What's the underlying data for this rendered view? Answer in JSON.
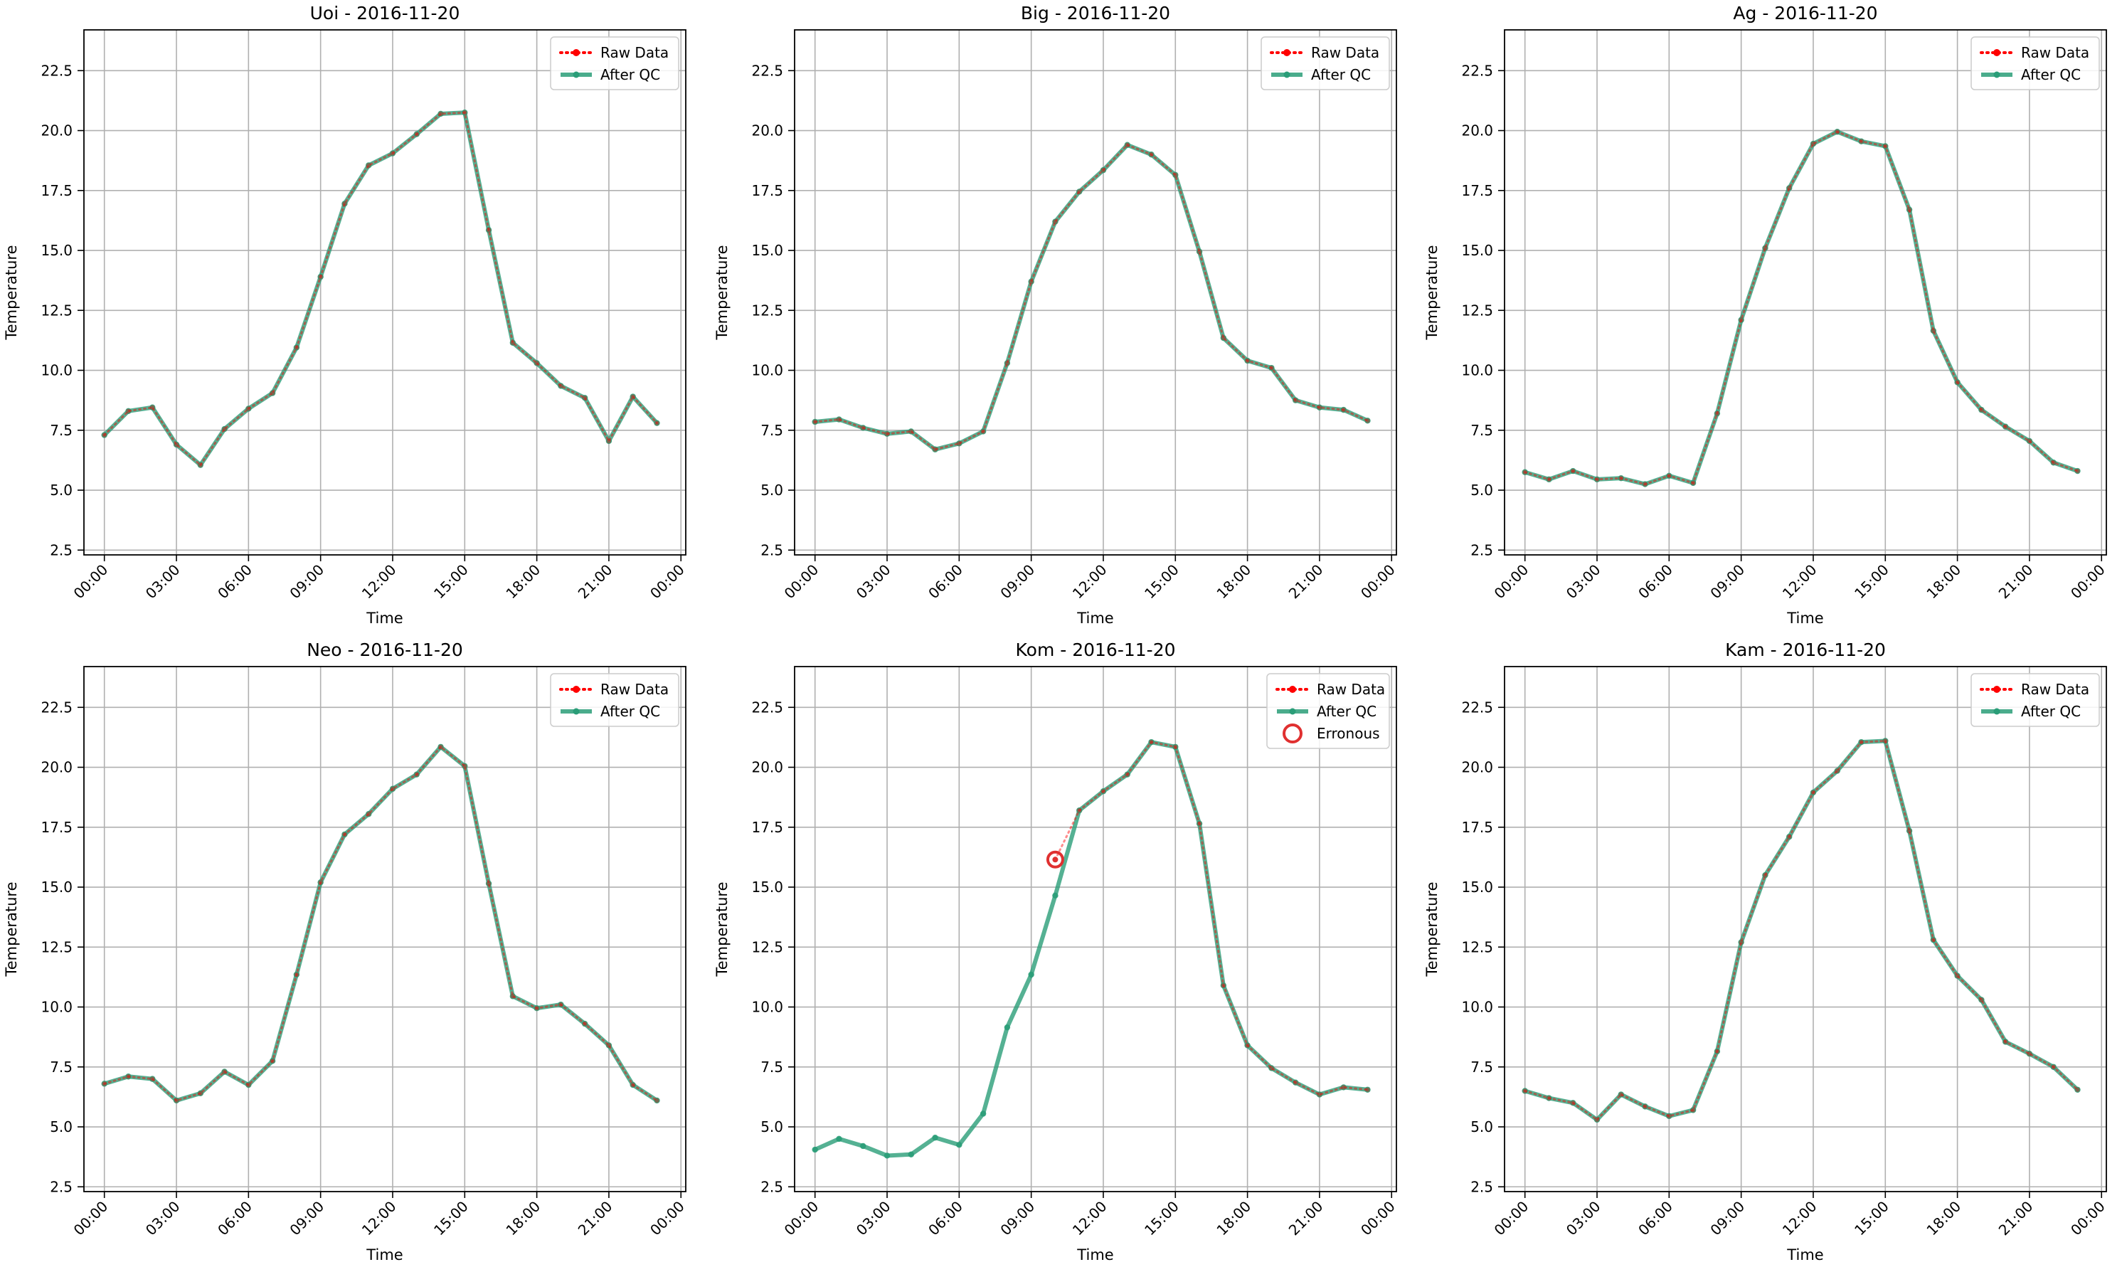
{
  "figure": {
    "raw_color": "#ff0000",
    "qc_color": "#2a9d78",
    "erroneous_color": "#e03030"
  },
  "chart_data": [
    {
      "type": "line",
      "title": "Uoi - 2016-11-20",
      "xlabel": "Time",
      "ylabel": "Temperature",
      "ylim": [
        2.3,
        24.2
      ],
      "xlim": [
        -0.85,
        24.2
      ],
      "x_tick_labels": [
        "00:00",
        "03:00",
        "06:00",
        "09:00",
        "12:00",
        "15:00",
        "18:00",
        "21:00",
        "00:00"
      ],
      "y_ticks": [
        "2.5",
        "5.0",
        "7.5",
        "10.0",
        "12.5",
        "15.0",
        "17.5",
        "20.0",
        "22.5"
      ],
      "grid": true,
      "legend_position": "top-right",
      "legend": [
        "Raw Data",
        "After QC"
      ],
      "x_hours": [
        0,
        1,
        2,
        3,
        4,
        5,
        6,
        7,
        8,
        9,
        10,
        11,
        12,
        13,
        14,
        15,
        16,
        17,
        18,
        19,
        20,
        21,
        22,
        23
      ],
      "series": [
        {
          "name": "Raw Data",
          "values": [
            7.3,
            8.3,
            8.45,
            6.9,
            6.05,
            7.55,
            8.4,
            9.05,
            10.95,
            13.9,
            16.95,
            18.55,
            19.05,
            19.85,
            20.7,
            20.75,
            15.85,
            11.15,
            10.3,
            9.35,
            8.85,
            7.05,
            8.9,
            7.8
          ]
        },
        {
          "name": "After QC",
          "values": [
            7.3,
            8.3,
            8.45,
            6.9,
            6.05,
            7.55,
            8.4,
            9.05,
            10.95,
            13.9,
            16.95,
            18.55,
            19.05,
            19.85,
            20.7,
            20.75,
            15.85,
            11.15,
            10.3,
            9.35,
            8.85,
            7.05,
            8.9,
            7.8
          ]
        }
      ]
    },
    {
      "type": "line",
      "title": "Big - 2016-11-20",
      "xlabel": "Time",
      "ylabel": "Temperature",
      "ylim": [
        2.3,
        24.2
      ],
      "xlim": [
        -0.85,
        24.2
      ],
      "x_tick_labels": [
        "00:00",
        "03:00",
        "06:00",
        "09:00",
        "12:00",
        "15:00",
        "18:00",
        "21:00",
        "00:00"
      ],
      "y_ticks": [
        "2.5",
        "5.0",
        "7.5",
        "10.0",
        "12.5",
        "15.0",
        "17.5",
        "20.0",
        "22.5"
      ],
      "grid": true,
      "legend_position": "top-right",
      "legend": [
        "Raw Data",
        "After QC"
      ],
      "x_hours": [
        0,
        1,
        2,
        3,
        4,
        5,
        6,
        7,
        8,
        9,
        10,
        11,
        12,
        13,
        14,
        15,
        16,
        17,
        18,
        19,
        20,
        21,
        22,
        23
      ],
      "series": [
        {
          "name": "Raw Data",
          "values": [
            7.85,
            7.95,
            7.6,
            7.35,
            7.45,
            6.7,
            6.95,
            7.45,
            10.3,
            13.7,
            16.2,
            17.45,
            18.35,
            19.4,
            19.0,
            18.15,
            14.95,
            11.35,
            10.4,
            10.1,
            8.75,
            8.45,
            8.35,
            7.9
          ]
        },
        {
          "name": "After QC",
          "values": [
            7.85,
            7.95,
            7.6,
            7.35,
            7.45,
            6.7,
            6.95,
            7.45,
            10.3,
            13.7,
            16.2,
            17.45,
            18.35,
            19.4,
            19.0,
            18.15,
            14.95,
            11.35,
            10.4,
            10.1,
            8.75,
            8.45,
            8.35,
            7.9
          ]
        }
      ]
    },
    {
      "type": "line",
      "title": "Ag - 2016-11-20",
      "xlabel": "Time",
      "ylabel": "Temperature",
      "ylim": [
        2.3,
        24.2
      ],
      "xlim": [
        -0.85,
        24.2
      ],
      "x_tick_labels": [
        "00:00",
        "03:00",
        "06:00",
        "09:00",
        "12:00",
        "15:00",
        "18:00",
        "21:00",
        "00:00"
      ],
      "y_ticks": [
        "2.5",
        "5.0",
        "7.5",
        "10.0",
        "12.5",
        "15.0",
        "17.5",
        "20.0",
        "22.5"
      ],
      "grid": true,
      "legend_position": "top-right",
      "legend": [
        "Raw Data",
        "After QC"
      ],
      "x_hours": [
        0,
        1,
        2,
        3,
        4,
        5,
        6,
        7,
        8,
        9,
        10,
        11,
        12,
        13,
        14,
        15,
        16,
        17,
        18,
        19,
        20,
        21,
        22,
        23
      ],
      "series": [
        {
          "name": "Raw Data",
          "values": [
            5.75,
            5.45,
            5.8,
            5.45,
            5.5,
            5.25,
            5.6,
            5.3,
            8.2,
            12.1,
            15.1,
            17.6,
            19.45,
            19.95,
            19.55,
            19.35,
            16.7,
            11.65,
            9.5,
            8.35,
            7.65,
            7.05,
            6.15,
            5.8
          ]
        },
        {
          "name": "After QC",
          "values": [
            5.75,
            5.45,
            5.8,
            5.45,
            5.5,
            5.25,
            5.6,
            5.3,
            8.2,
            12.1,
            15.1,
            17.6,
            19.45,
            19.95,
            19.55,
            19.35,
            16.7,
            11.65,
            9.5,
            8.35,
            7.65,
            7.05,
            6.15,
            5.8
          ]
        }
      ]
    },
    {
      "type": "line",
      "title": "Neo - 2016-11-20",
      "xlabel": "Time",
      "ylabel": "Temperature",
      "ylim": [
        2.3,
        24.2
      ],
      "xlim": [
        -0.85,
        24.2
      ],
      "x_tick_labels": [
        "00:00",
        "03:00",
        "06:00",
        "09:00",
        "12:00",
        "15:00",
        "18:00",
        "21:00",
        "00:00"
      ],
      "y_ticks": [
        "2.5",
        "5.0",
        "7.5",
        "10.0",
        "12.5",
        "15.0",
        "17.5",
        "20.0",
        "22.5"
      ],
      "grid": true,
      "legend_position": "top-right",
      "legend": [
        "Raw Data",
        "After QC"
      ],
      "x_hours": [
        0,
        1,
        2,
        3,
        4,
        5,
        6,
        7,
        8,
        9,
        10,
        11,
        12,
        13,
        14,
        15,
        16,
        17,
        18,
        19,
        20,
        21,
        22,
        23
      ],
      "series": [
        {
          "name": "Raw Data",
          "values": [
            6.8,
            7.1,
            7.0,
            6.1,
            6.4,
            7.3,
            6.75,
            7.75,
            11.35,
            15.2,
            17.2,
            18.05,
            19.1,
            19.7,
            20.85,
            20.05,
            15.15,
            10.45,
            9.95,
            10.1,
            9.3,
            8.4,
            6.75,
            6.1
          ]
        },
        {
          "name": "After QC",
          "values": [
            6.8,
            7.1,
            7.0,
            6.1,
            6.4,
            7.3,
            6.75,
            7.75,
            11.35,
            15.2,
            17.2,
            18.05,
            19.1,
            19.7,
            20.85,
            20.05,
            15.15,
            10.45,
            9.95,
            10.1,
            9.3,
            8.4,
            6.75,
            6.1
          ]
        }
      ]
    },
    {
      "type": "line",
      "title": "Kom - 2016-11-20",
      "xlabel": "Time",
      "ylabel": "Temperature",
      "ylim": [
        2.3,
        24.2
      ],
      "xlim": [
        -0.85,
        24.2
      ],
      "x_tick_labels": [
        "00:00",
        "03:00",
        "06:00",
        "09:00",
        "12:00",
        "15:00",
        "18:00",
        "21:00",
        "00:00"
      ],
      "y_ticks": [
        "2.5",
        "5.0",
        "7.5",
        "10.0",
        "12.5",
        "15.0",
        "17.5",
        "20.0",
        "22.5"
      ],
      "grid": true,
      "legend_position": "top-right",
      "legend": [
        "Raw Data",
        "After QC",
        "Erronous"
      ],
      "raw_x_hours": [
        10,
        11,
        12,
        13,
        14,
        15,
        16,
        17,
        18,
        19,
        20,
        21,
        22,
        23
      ],
      "x_hours": [
        0,
        1,
        2,
        3,
        4,
        5,
        6,
        7,
        8,
        9,
        10,
        11,
        12,
        13,
        14,
        15,
        16,
        17,
        18,
        19,
        20,
        21,
        22,
        23
      ],
      "series": [
        {
          "name": "Raw Data",
          "values": [
            16.15,
            18.2,
            19.0,
            19.7,
            21.05,
            20.85,
            17.65,
            10.9,
            8.4,
            7.45,
            6.85,
            6.35,
            6.65,
            6.55
          ]
        },
        {
          "name": "After QC",
          "values": [
            4.05,
            4.5,
            4.2,
            3.8,
            3.85,
            4.55,
            4.25,
            5.55,
            9.15,
            11.35,
            14.65,
            18.2,
            19.0,
            19.7,
            21.05,
            20.85,
            17.65,
            10.9,
            8.4,
            7.45,
            6.85,
            6.35,
            6.65,
            6.55
          ]
        }
      ],
      "erroneous": [
        {
          "x": 10,
          "y": 16.15
        }
      ]
    },
    {
      "type": "line",
      "title": "Kam - 2016-11-20",
      "xlabel": "Time",
      "ylabel": "Temperature",
      "ylim": [
        2.3,
        24.2
      ],
      "xlim": [
        -0.85,
        24.2
      ],
      "x_tick_labels": [
        "00:00",
        "03:00",
        "06:00",
        "09:00",
        "12:00",
        "15:00",
        "18:00",
        "21:00",
        "00:00"
      ],
      "y_ticks": [
        "2.5",
        "5.0",
        "7.5",
        "10.0",
        "12.5",
        "15.0",
        "17.5",
        "20.0",
        "22.5"
      ],
      "grid": true,
      "legend_position": "top-right",
      "legend": [
        "Raw Data",
        "After QC"
      ],
      "x_hours": [
        0,
        1,
        2,
        3,
        4,
        5,
        6,
        7,
        8,
        9,
        10,
        11,
        12,
        13,
        14,
        15,
        16,
        17,
        18,
        19,
        20,
        21,
        22,
        23
      ],
      "series": [
        {
          "name": "Raw Data",
          "values": [
            6.5,
            6.2,
            6.0,
            5.3,
            6.35,
            5.85,
            5.45,
            5.7,
            8.15,
            12.7,
            15.5,
            17.1,
            18.95,
            19.85,
            21.05,
            21.1,
            17.35,
            12.8,
            11.3,
            10.3,
            8.55,
            8.05,
            7.5,
            6.55
          ]
        },
        {
          "name": "After QC",
          "values": [
            6.5,
            6.2,
            6.0,
            5.3,
            6.35,
            5.85,
            5.45,
            5.7,
            8.15,
            12.7,
            15.5,
            17.1,
            18.95,
            19.85,
            21.05,
            21.1,
            17.35,
            12.8,
            11.3,
            10.3,
            8.55,
            8.05,
            7.5,
            6.55
          ]
        }
      ]
    }
  ]
}
